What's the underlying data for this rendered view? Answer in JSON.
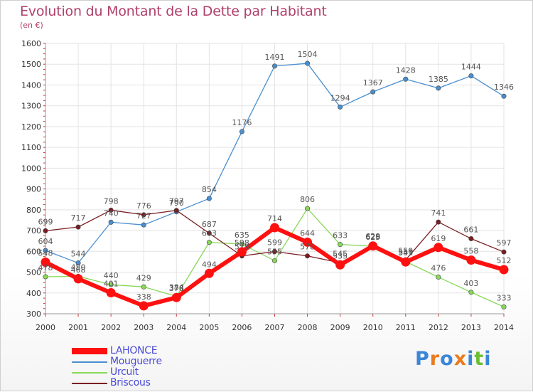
{
  "title": "Evolution du Montant de la Dette par Habitant",
  "subtitle": "(en €)",
  "logo": {
    "letters": [
      "P",
      "r",
      "o",
      "x",
      "i",
      "t",
      "i"
    ],
    "colors": [
      "#3a86d8",
      "#ea7b1e",
      "#3a86d8",
      "#ea7b1e",
      "#3a86d8",
      "#6bbf33",
      "#3a86d8"
    ]
  },
  "chart_data": {
    "type": "line",
    "title": "Evolution du Montant de la Dette par Habitant",
    "subtitle": "(en €)",
    "x": [
      2000,
      2001,
      2002,
      2003,
      2004,
      2005,
      2006,
      2007,
      2008,
      2009,
      2010,
      2011,
      2012,
      2013,
      2014
    ],
    "ylim": [
      300,
      1600
    ],
    "yticks": [
      300,
      400,
      500,
      600,
      700,
      800,
      900,
      1000,
      1100,
      1200,
      1300,
      1400,
      1500,
      1600
    ],
    "grid": true,
    "legend_position": "bottom-left",
    "series": [
      {
        "name": "Mouguerre",
        "color": "#4a8fd0",
        "values": [
          604,
          544,
          740,
          727,
          790,
          854,
          1176,
          1491,
          1504,
          1294,
          1367,
          1428,
          1385,
          1444,
          1346
        ]
      },
      {
        "name": "Urcuit",
        "color": "#88d858",
        "values": [
          478,
          480,
          440,
          429,
          384,
          643,
          635,
          555,
          806,
          633,
          625,
          551,
          476,
          403,
          333
        ]
      },
      {
        "name": "Briscous",
        "color": "#7a1e22",
        "values": [
          699,
          717,
          798,
          776,
          797,
          687,
          578,
          599,
          578,
          545,
          629,
          559,
          741,
          661,
          597
        ]
      },
      {
        "name": "LAHONCE",
        "color": "#ff1010",
        "values": [
          548,
          468,
          401,
          338,
          378,
          494,
          598,
          714,
          644,
          535,
          626,
          549,
          619,
          558,
          512
        ]
      }
    ],
    "legend_order": [
      "LAHONCE",
      "Mouguerre",
      "Urcuit",
      "Briscous"
    ]
  }
}
